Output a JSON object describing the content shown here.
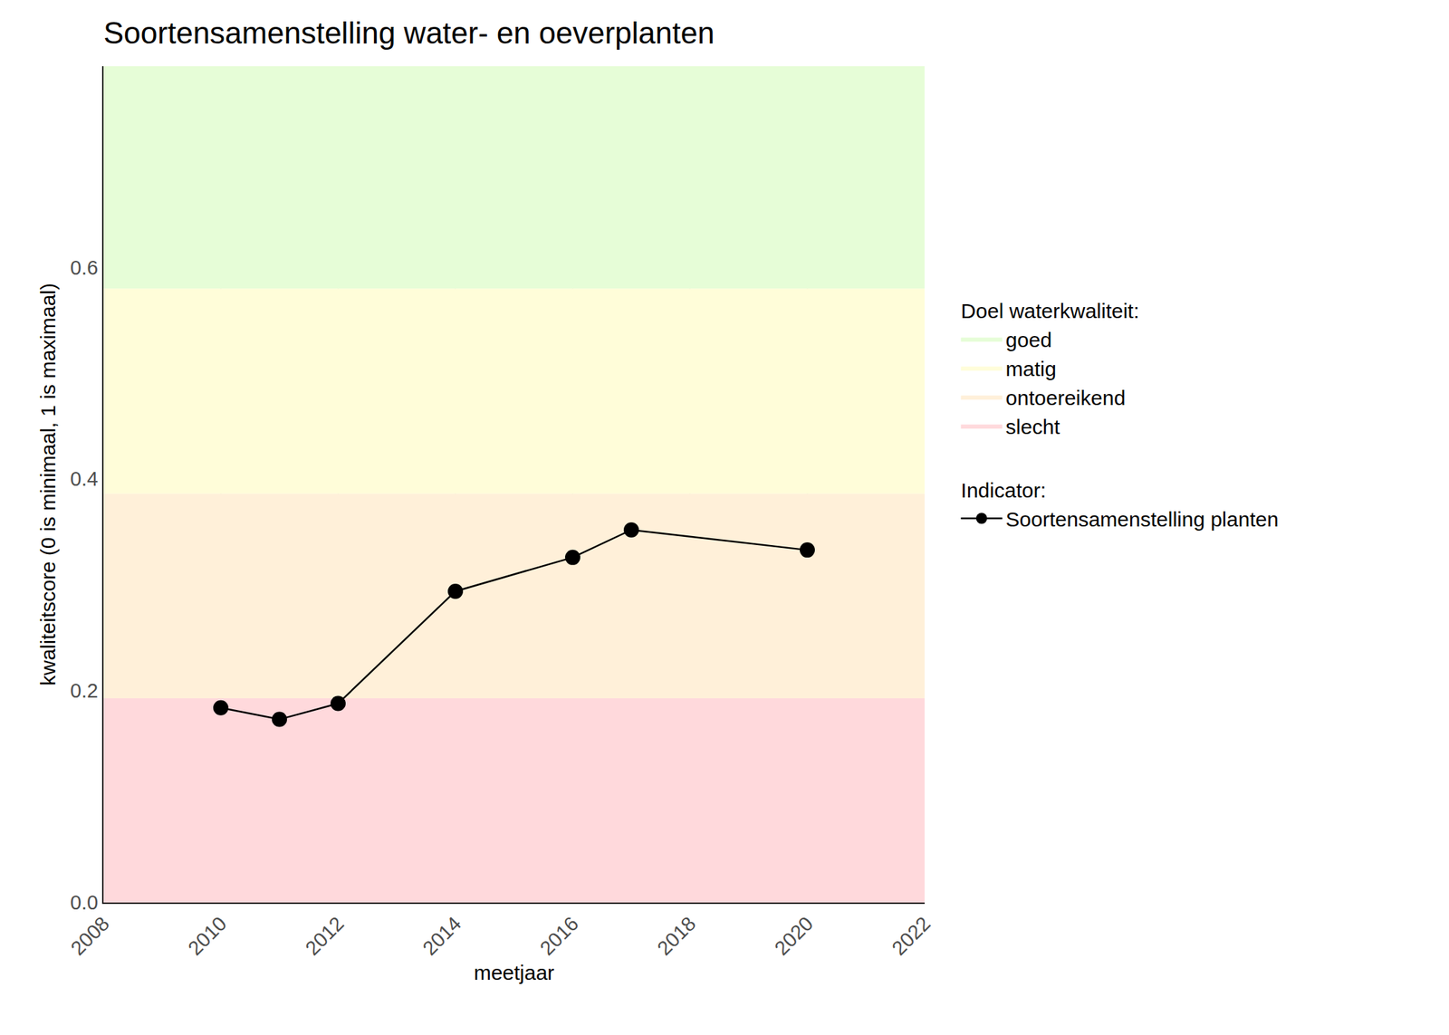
{
  "chart_data": {
    "type": "line",
    "title": "Soortensamenstelling water- en oeverplanten",
    "x_label": "meetjaar",
    "y_label": "kwaliteitscore (0 is minimaal, 1 is maximaal)",
    "x": [
      2010,
      2011,
      2012,
      2014,
      2016,
      2017,
      2020
    ],
    "series": [
      {
        "name": "Soortensamenstelling planten",
        "color": "#000000",
        "marker": "circle",
        "line_style": "solid",
        "values": [
          0.184,
          0.173,
          0.188,
          0.294,
          0.326,
          0.352,
          0.333
        ]
      }
    ],
    "series_title": "Indicator:",
    "bands_title": "Doel waterkwaliteit:",
    "bands": [
      {
        "name": "goed",
        "color": "#e6fdd7",
        "from": 0.58,
        "to": 0.79
      },
      {
        "name": "matig",
        "color": "#fffdd9",
        "from": 0.386,
        "to": 0.58
      },
      {
        "name": "ontoereikend",
        "color": "#fff0d9",
        "from": 0.193,
        "to": 0.386
      },
      {
        "name": "slecht",
        "color": "#ffd9dc",
        "from": 0,
        "to": 0.193
      }
    ],
    "xlim": [
      2008,
      2022
    ],
    "xticks": [
      2008,
      2010,
      2012,
      2014,
      2016,
      2018,
      2020,
      2022
    ],
    "ylim": [
      0,
      0.79
    ],
    "yticks": [
      {
        "value": 0,
        "label": "0.0"
      },
      0.2,
      0.4,
      0.6
    ],
    "grid": true,
    "legend": "right"
  }
}
